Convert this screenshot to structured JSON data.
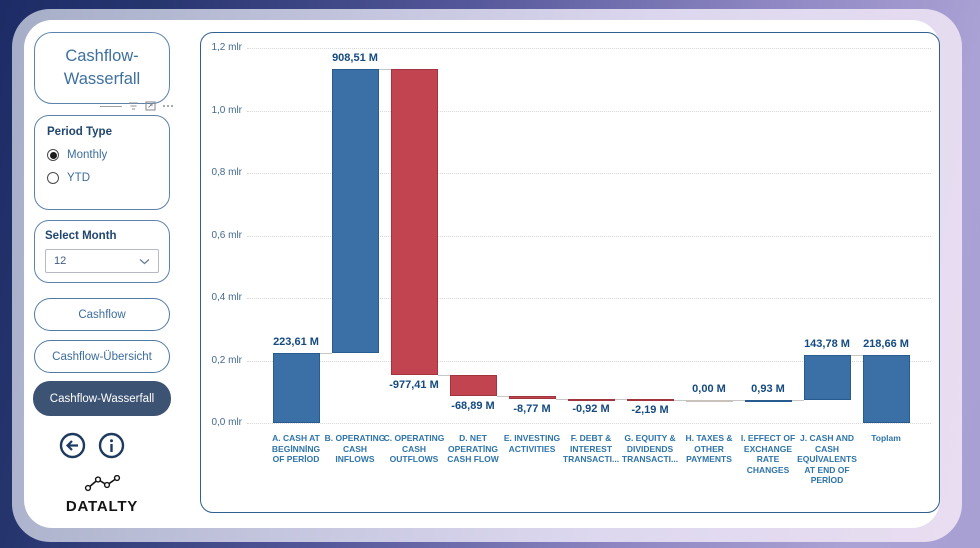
{
  "sidebar": {
    "title": "Cashflow-\nWasserfall",
    "header_icons": [
      "drag-handle",
      "filter-icon",
      "focus-mode-icon",
      "more-options-icon"
    ],
    "period_type": {
      "label": "Period Type",
      "options": [
        {
          "label": "Monthly",
          "selected": true
        },
        {
          "label": "YTD",
          "selected": false
        }
      ]
    },
    "select_month": {
      "label": "Select Month",
      "value": "12"
    },
    "nav": [
      {
        "label": "Cashflow",
        "active": false
      },
      {
        "label": "Cashflow-Übersicht",
        "active": false
      },
      {
        "label": "Cashflow-Wasserfall",
        "active": true
      }
    ],
    "logo": "DATALTY"
  },
  "chart_data": {
    "type": "waterfall",
    "y_axis": {
      "ticks": [
        "0,0 mlr",
        "0,2 mlr",
        "0,4 mlr",
        "0,6 mlr",
        "0,8 mlr",
        "1,0 mlr",
        "1,2 mlr"
      ],
      "step_m": 200,
      "max_m": 1200,
      "grid": "dotted"
    },
    "colors": {
      "increase": "#3b70a6",
      "increase_border": "#285c90",
      "decrease": "#c24450",
      "decrease_border": "#a1343f",
      "zero_line": "#c9c2ba",
      "connector": "#c6c6c6"
    },
    "items": [
      {
        "category": "A. CASH AT\nBEGİNNİNG\nOF PERİOD",
        "value_m": 223.61,
        "label": "223,61 M",
        "kind": "increase"
      },
      {
        "category": "B. OPERATING\nCASH\nINFLOWS",
        "value_m": 908.51,
        "label": "908,51 M",
        "kind": "increase"
      },
      {
        "category": "C. OPERATING\nCASH\nOUTFLOWS",
        "value_m": -977.41,
        "label": "-977,41 M",
        "kind": "decrease"
      },
      {
        "category": "D. NET\nOPERATİNG\nCASH FLOW",
        "value_m": -68.89,
        "label": "-68,89 M",
        "kind": "decrease"
      },
      {
        "category": "E. INVESTING\nACTIVITIES",
        "value_m": -8.77,
        "label": "-8,77 M",
        "kind": "decrease"
      },
      {
        "category": "F. DEBT &\nINTEREST\nTRANSACTI...",
        "value_m": -0.92,
        "label": "-0,92 M",
        "kind": "decrease"
      },
      {
        "category": "G. EQUITY &\nDIVIDENDS\nTRANSACTI...",
        "value_m": -2.19,
        "label": "-2,19 M",
        "kind": "decrease"
      },
      {
        "category": "H. TAXES &\nOTHER\nPAYMENTS",
        "value_m": 0.0,
        "label": "0,00 M",
        "kind": "zero"
      },
      {
        "category": "I. EFFECT OF\nEXCHANGE\nRATE\nCHANGES",
        "value_m": 0.93,
        "label": "0,93 M",
        "kind": "increase"
      },
      {
        "category": "J. CASH AND\nCASH\nEQUİVALENTS\nAT END OF\nPERİOD",
        "value_m": 143.78,
        "label": "143,78 M",
        "kind": "increase"
      },
      {
        "category": "Toplam",
        "value_m": 218.66,
        "label": "218,66 M",
        "kind": "total"
      }
    ]
  }
}
